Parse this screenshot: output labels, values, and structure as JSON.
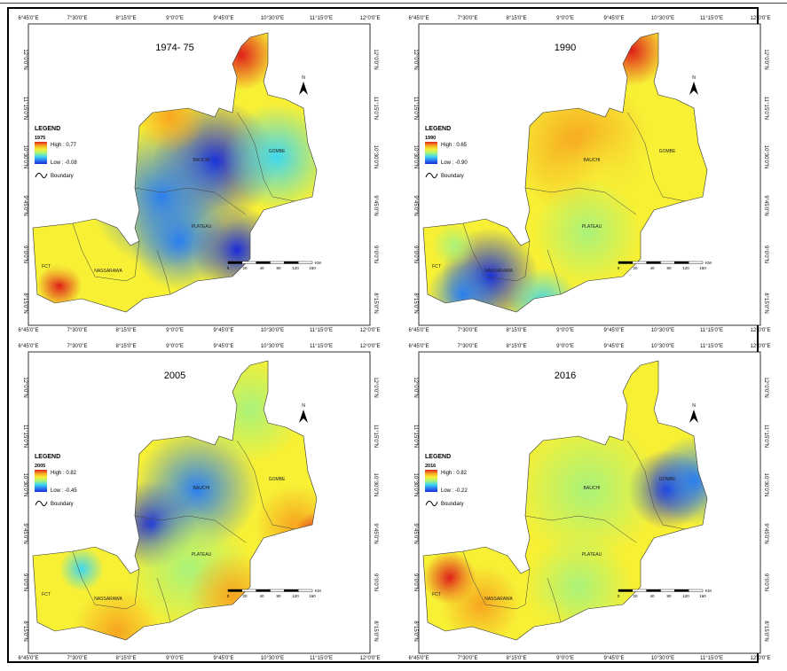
{
  "header_fragment": "",
  "tick_labels": {
    "lon": [
      "6°45'0\"E",
      "7°30'0\"E",
      "8°15'0\"E",
      "9°0'0\"E",
      "9°45'0\"E",
      "10°30'0\"E",
      "11°15'0\"E",
      "12°0'0\"E"
    ],
    "lat": [
      "12°0'0\"N",
      "11°15'0\"N",
      "10°30'0\"N",
      "9°45'0\"N",
      "9°0'0\"N",
      "8°15'0\"N"
    ]
  },
  "regions": {
    "bauchi": "BAUCHI",
    "gombe": "GOMBE",
    "plateau": "PLATEAU",
    "fct": "FCT",
    "nasarawa": "NASSARAWA"
  },
  "legend": {
    "heading": "LEGEND",
    "boundary": "Boundary"
  },
  "north_label": "N",
  "scale_labels": [
    "0",
    "20",
    "40",
    "80",
    "120",
    "160"
  ],
  "scale_unit": "KM",
  "panels": [
    {
      "title": "1974- 75",
      "legend_year": "1975",
      "high": "High : 0.77",
      "low": "Low : -0.08",
      "palette": [
        "#1a2cd8",
        "#2a7ff0",
        "#3fd7f0",
        "#a9f27a",
        "#f7f035",
        "#f7a520",
        "#e0201a"
      ]
    },
    {
      "title": "1990",
      "legend_year": "1990",
      "high": "High : 0.65",
      "low": "Low : -0.90",
      "palette": [
        "#1a2cd8",
        "#2a7ff0",
        "#3fd7f0",
        "#a9f27a",
        "#f7f035",
        "#f7a520",
        "#e0201a"
      ]
    },
    {
      "title": "2005",
      "legend_year": "2005",
      "high": "High : 0.82",
      "low": "Low : -0.45",
      "palette": [
        "#1a2cd8",
        "#2a7ff0",
        "#3fd7f0",
        "#a9f27a",
        "#f7f035",
        "#f7a520",
        "#e0201a"
      ]
    },
    {
      "title": "2016",
      "legend_year": "2016",
      "high": "High : 0.82",
      "low": "Low : -0.22",
      "palette": [
        "#1a2cd8",
        "#2a7ff0",
        "#3fd7f0",
        "#a9f27a",
        "#f7f035",
        "#f7a520",
        "#e0201a"
      ]
    }
  ]
}
